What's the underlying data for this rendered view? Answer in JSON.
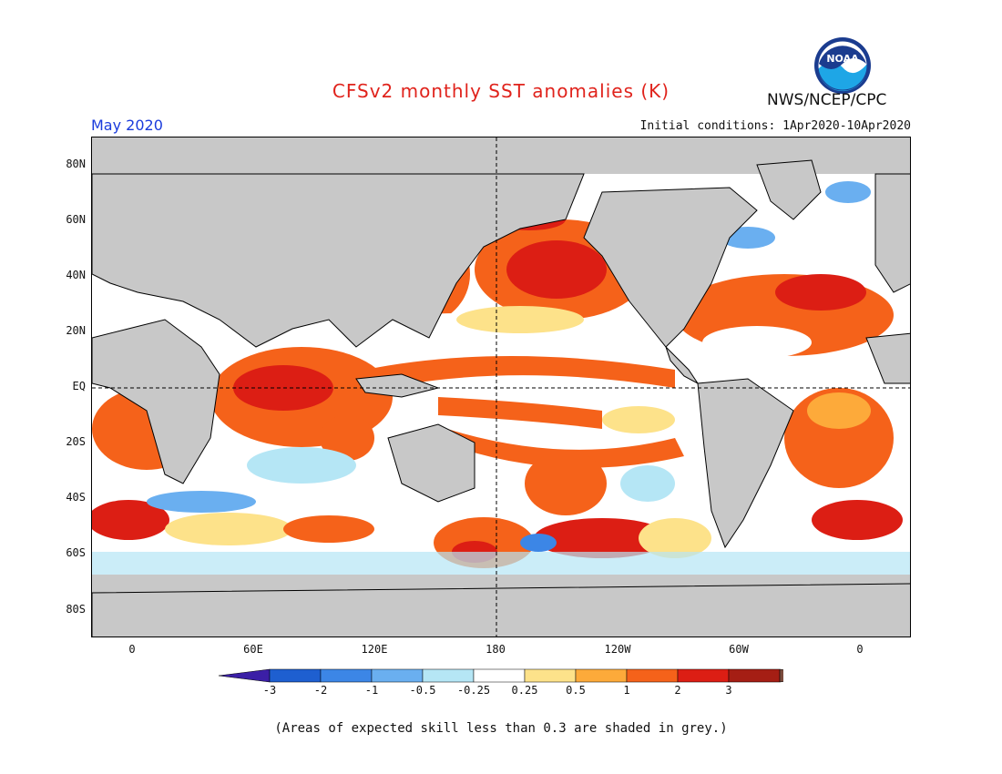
{
  "title": "CFSv2 monthly SST anomalies (K)",
  "agency": "NWS/NCEP/CPC",
  "logo_text": "NOAA",
  "month": "May 2020",
  "initial_conditions": "Initial conditions: 1Apr2020-10Apr2020",
  "footnote": "(Areas of expected skill less than 0.3 are shaded in grey.)",
  "map": {
    "lat_labels": [
      "80N",
      "60N",
      "40N",
      "20N",
      "EQ",
      "20S",
      "40S",
      "60S",
      "80S"
    ],
    "lon_labels": [
      "0",
      "60E",
      "120E",
      "180",
      "120W",
      "60W",
      "0"
    ],
    "land_color": "#c8c8c8",
    "low_skill_color": "#c8c8c8",
    "ocean_neutral_color": "#ffffff"
  },
  "colorbar": {
    "labels": [
      "-3",
      "-2",
      "-1",
      "-0.5",
      "-0.25",
      "0.25",
      "0.5",
      "1",
      "2",
      "3"
    ],
    "colors": [
      "#3b1fa6",
      "#1e5fd0",
      "#3c86e6",
      "#6aaff0",
      "#b5e6f5",
      "#ffffff",
      "#fde28a",
      "#fdaa3a",
      "#f5621a",
      "#dc1e14",
      "#a51e14",
      "#7a4a3c"
    ]
  }
}
